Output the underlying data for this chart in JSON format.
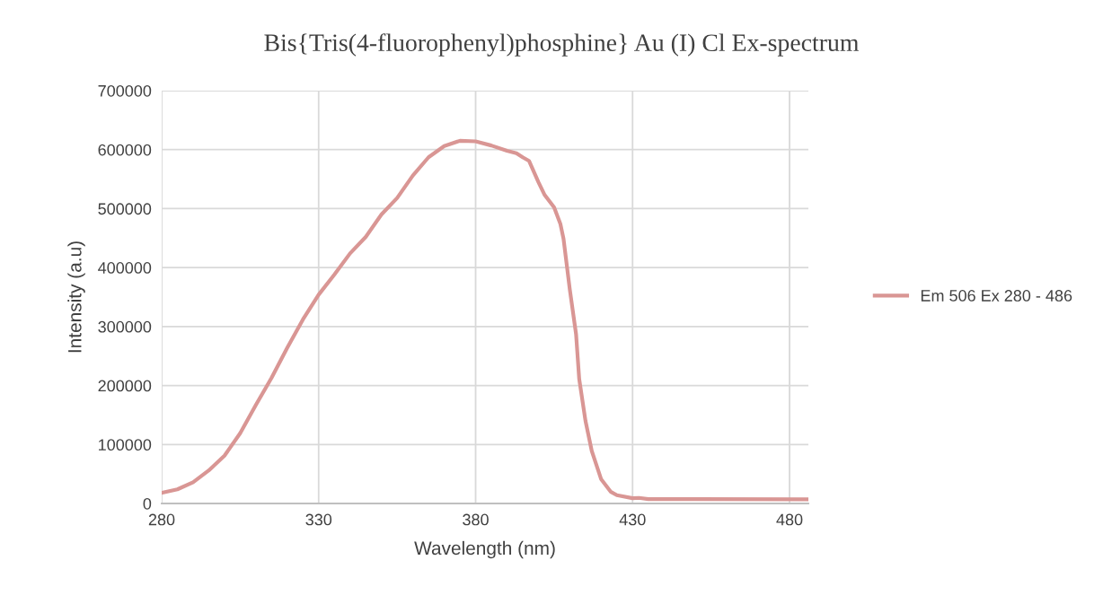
{
  "chart_data": {
    "type": "line",
    "title": "Bis{Tris(4-fluorophenyl)phosphine} Au (I) Cl Ex-spectrum",
    "xlabel": "Wavelength (nm)",
    "ylabel": "Intensity (a.u)",
    "xlim": [
      280,
      486
    ],
    "xticks": [
      280,
      330,
      380,
      430,
      480
    ],
    "ylim": [
      0,
      700000
    ],
    "yticks": [
      0,
      100000,
      200000,
      300000,
      400000,
      500000,
      600000,
      700000
    ],
    "grid": true,
    "legend": "right",
    "marker": "none",
    "line_style": "solid",
    "series": [
      {
        "name": "Em 506 Ex 280 - 486",
        "color": "#d99694",
        "x": [
          280,
          285,
          290,
          295,
          300,
          305,
          310,
          315,
          320,
          325,
          330,
          335,
          340,
          345,
          350,
          355,
          360,
          365,
          370,
          375,
          380,
          385,
          390,
          393,
          395,
          397,
          400,
          402,
          405,
          407,
          408,
          410,
          412,
          413,
          415,
          417,
          420,
          423,
          425,
          430,
          432,
          435,
          450,
          486
        ],
        "values": [
          18000,
          24000,
          36000,
          56000,
          81000,
          119000,
          167000,
          213000,
          264000,
          312000,
          354000,
          388000,
          424000,
          452000,
          490000,
          518000,
          556000,
          587000,
          606000,
          615000,
          614000,
          607000,
          598000,
          594000,
          587000,
          581000,
          545000,
          523000,
          502000,
          474000,
          449000,
          363000,
          287000,
          211000,
          140000,
          89000,
          41000,
          20000,
          14000,
          9000,
          9500,
          7500,
          7500,
          7000
        ]
      }
    ]
  }
}
